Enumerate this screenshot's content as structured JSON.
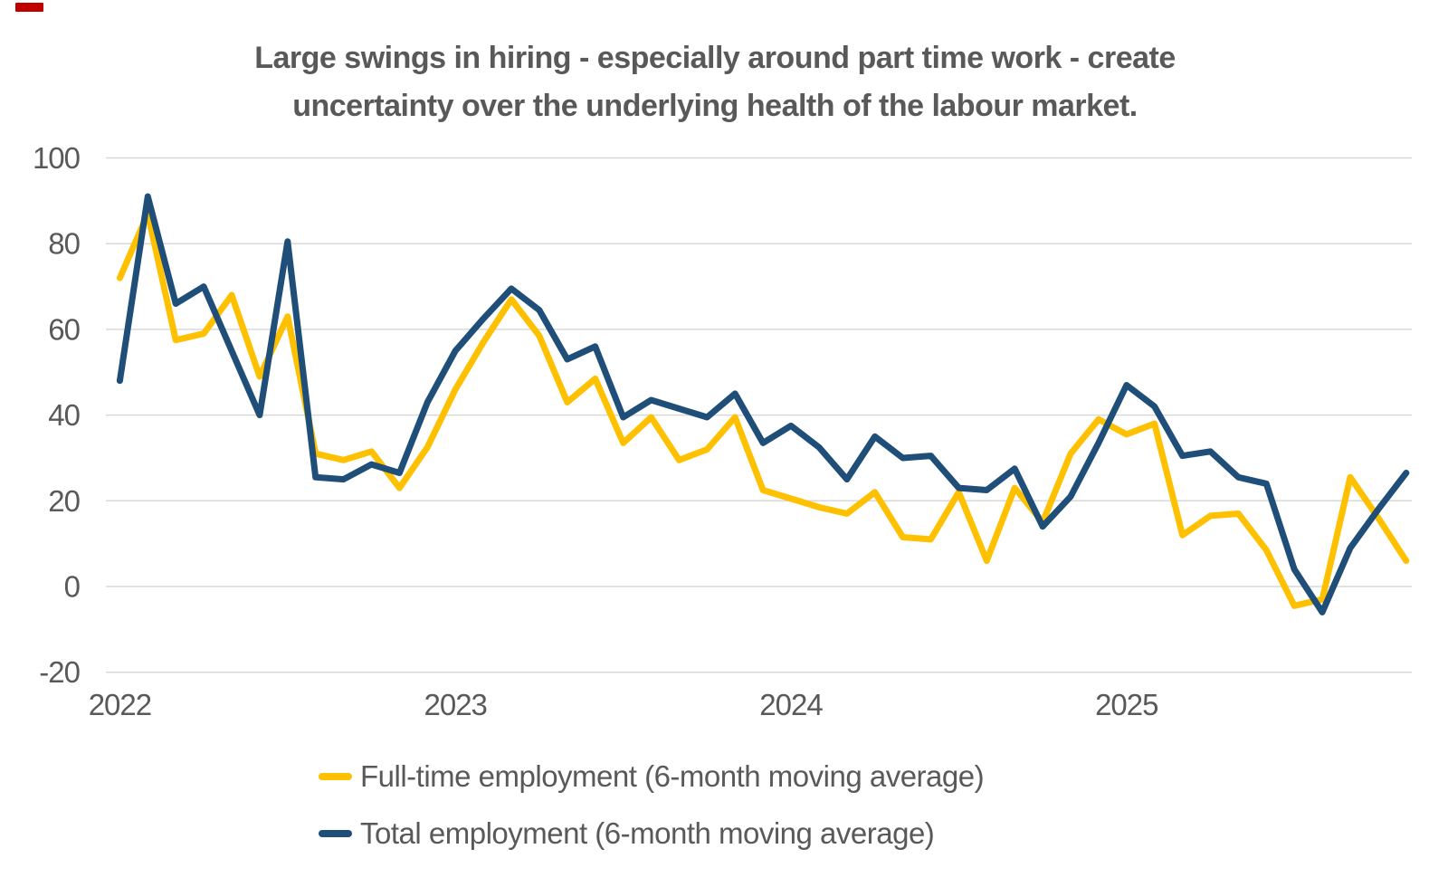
{
  "page": {
    "background": "#ffffff",
    "red_mark_color": "#c00000"
  },
  "chart_data": {
    "type": "line",
    "title_line1": "Large swings in hiring - especially around part time work - create",
    "title_line2": "uncertainty over the underlying health of the labour market.",
    "title_color": "#595959",
    "grid": true,
    "gridline_color": "#d9d9d9",
    "axis_text_color": "#595959",
    "ylim": [
      -20,
      100
    ],
    "y_ticks": [
      100,
      80,
      60,
      40,
      20,
      0,
      -20
    ],
    "x_tick_labels": [
      "2022",
      "2023",
      "2024",
      "2025"
    ],
    "legend_position": "bottom",
    "months": [
      "Jan 2022",
      "Feb 2022",
      "Mar 2022",
      "Apr 2022",
      "May 2022",
      "Jun 2022",
      "Jul 2022",
      "Aug 2022",
      "Sep 2022",
      "Oct 2022",
      "Nov 2022",
      "Dec 2022",
      "Jan 2023",
      "Feb 2023",
      "Mar 2023",
      "Apr 2023",
      "May 2023",
      "Jun 2023",
      "Jul 2023",
      "Aug 2023",
      "Sep 2023",
      "Oct 2023",
      "Nov 2023",
      "Dec 2023",
      "Jan 2024",
      "Feb 2024",
      "Mar 2024",
      "Apr 2024",
      "May 2024",
      "Jun 2024",
      "Jul 2024",
      "Aug 2024",
      "Sep 2024",
      "Oct 2024",
      "Nov 2024",
      "Dec 2024",
      "Jan 2025",
      "Feb 2025",
      "Mar 2025",
      "Apr 2025",
      "May 2025",
      "Jun 2025",
      "Jul 2025",
      "Aug 2025",
      "Sep 2025",
      "Oct 2025",
      "Nov 2025"
    ],
    "series": [
      {
        "name": "Full-time employment (6-month moving average)",
        "color": "#ffc000",
        "values": [
          72,
          87,
          57.5,
          59,
          68,
          49,
          63,
          31,
          29.5,
          31.5,
          23,
          32.5,
          46,
          57,
          67,
          58.5,
          43,
          48.5,
          33.5,
          39.5,
          29.5,
          32,
          39.5,
          22.5,
          20.5,
          18.5,
          17,
          22,
          11.5,
          11,
          22,
          6,
          23,
          15,
          31,
          39,
          35.5,
          38,
          12,
          16.5,
          17,
          8.5,
          -4.5,
          -3,
          25.5,
          16,
          6
        ]
      },
      {
        "name": "Total employment (6-month moving average)",
        "color": "#1f4e79",
        "values": [
          48,
          91,
          66,
          70,
          55,
          40,
          80.5,
          25.5,
          25,
          28.5,
          26.5,
          43,
          55,
          62.5,
          69.5,
          64.5,
          53,
          56,
          39.5,
          43.5,
          41.5,
          39.5,
          45,
          33.5,
          37.5,
          32.5,
          25,
          35,
          30,
          30.5,
          23,
          22.5,
          27.5,
          14,
          21,
          33.5,
          47,
          42,
          30.5,
          31.5,
          25.5,
          24,
          4,
          -6,
          9,
          18,
          26.5
        ]
      }
    ]
  }
}
